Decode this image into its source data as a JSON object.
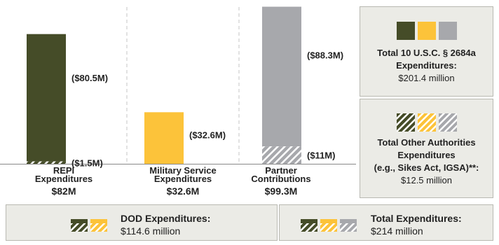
{
  "chart_data": {
    "type": "bar",
    "categories": [
      "REPI Expenditures",
      "Military Service Expenditures",
      "Partner Contributions"
    ],
    "category_labels": [
      [
        "REPI",
        "Expenditures"
      ],
      [
        "Military Service",
        "Expenditures"
      ],
      [
        "Partner",
        "Contributions"
      ]
    ],
    "totals": [
      "$82M",
      "$32.6M",
      "$99.3M"
    ],
    "ylim": [
      0,
      100
    ],
    "series": [
      {
        "name": "10 U.S.C. § 2684a",
        "values": [
          80.5,
          32.6,
          88.3
        ],
        "labels": [
          "($80.5M)",
          "($32.6M)",
          "($88.3M)"
        ]
      },
      {
        "name": "Other Authorities",
        "values": [
          1.5,
          0,
          11
        ],
        "labels": [
          "($1.5M)",
          "",
          "($11M)"
        ]
      }
    ],
    "colors": {
      "repi": "#454c28",
      "military": "#fcc33a",
      "partner": "#a7a8ac"
    }
  },
  "legend": {
    "total_2684a": {
      "title_lines": [
        "Total 10 U.S.C. § 2684a",
        "Expenditures:"
      ],
      "value": "$201.4 million"
    },
    "total_other": {
      "title_lines": [
        "Total Other Authorities",
        "Expenditures",
        "(e.g., Sikes Act, IGSA)**:"
      ],
      "value": "$12.5 million"
    }
  },
  "footer": {
    "dod": {
      "label": "DOD Expenditures:",
      "value": "$114.6 million"
    },
    "total": {
      "label": "Total Expenditures:",
      "value": "$214 million"
    }
  }
}
